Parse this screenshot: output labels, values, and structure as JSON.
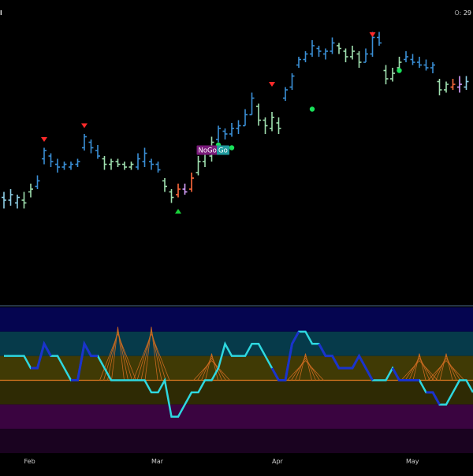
{
  "header": {
    "symbol_fragment": "l",
    "ohlc_label": "O:",
    "ohlc_value": "29"
  },
  "colors": {
    "strong_up": "#3a8fd6",
    "weak_up": "#8ecfe6",
    "neutral_up": "#9fe0b0",
    "neutral_down": "#d8a0ff",
    "strong_down": "#ff6a3d",
    "oscillator_line": "#2ed8e0",
    "oscillator_extreme": "#1a33cc",
    "zero_line": "#e07a20",
    "cone": "#c96a20",
    "go_badge": "#1f9a9e",
    "nogo_badge": "#7a1a7a",
    "up_triangle": "#19d23a",
    "down_triangle": "#ff2a2a",
    "dot": "#19e05a"
  },
  "chart_data": [
    {
      "type": "ohlc",
      "panel": "price",
      "ylim": [
        0,
        100
      ],
      "bars": [
        {
          "x": 0,
          "h": 39,
          "l": 33,
          "o": 37,
          "c": 36,
          "cls": "weak_up"
        },
        {
          "x": 1,
          "h": 40,
          "l": 34,
          "o": 36,
          "c": 38,
          "cls": "weak_up"
        },
        {
          "x": 2,
          "h": 38,
          "l": 33,
          "o": 35,
          "c": 37,
          "cls": "weak_up"
        },
        {
          "x": 3,
          "h": 39,
          "l": 33,
          "o": 36,
          "c": 35,
          "cls": "neutral_up"
        },
        {
          "x": 4,
          "h": 42,
          "l": 37,
          "o": 39,
          "c": 40,
          "cls": "neutral_up"
        },
        {
          "x": 5,
          "h": 45,
          "l": 40,
          "o": 41,
          "c": 43,
          "cls": "strong_up"
        },
        {
          "x": 6,
          "h": 55,
          "l": 49,
          "o": 51,
          "c": 54,
          "cls": "strong_up"
        },
        {
          "x": 7,
          "h": 53,
          "l": 48,
          "o": 52,
          "c": 50,
          "cls": "strong_up"
        },
        {
          "x": 8,
          "h": 51,
          "l": 46,
          "o": 49,
          "c": 48,
          "cls": "strong_up"
        },
        {
          "x": 9,
          "h": 50,
          "l": 47,
          "o": 48,
          "c": 49,
          "cls": "strong_up"
        },
        {
          "x": 10,
          "h": 50,
          "l": 47,
          "o": 48,
          "c": 49,
          "cls": "strong_up"
        },
        {
          "x": 11,
          "h": 51,
          "l": 48,
          "o": 49,
          "c": 50,
          "cls": "strong_up"
        },
        {
          "x": 12,
          "h": 60,
          "l": 54,
          "o": 55,
          "c": 59,
          "cls": "strong_up"
        },
        {
          "x": 13,
          "h": 58,
          "l": 53,
          "o": 57,
          "c": 55,
          "cls": "strong_up"
        },
        {
          "x": 14,
          "h": 56,
          "l": 51,
          "o": 54,
          "c": 52,
          "cls": "strong_up"
        },
        {
          "x": 15,
          "h": 52,
          "l": 47,
          "o": 51,
          "c": 49,
          "cls": "neutral_up"
        },
        {
          "x": 16,
          "h": 51,
          "l": 47,
          "o": 49,
          "c": 50,
          "cls": "neutral_up"
        },
        {
          "x": 17,
          "h": 51,
          "l": 48,
          "o": 50,
          "c": 49,
          "cls": "neutral_up"
        },
        {
          "x": 18,
          "h": 50,
          "l": 47,
          "o": 49,
          "c": 48,
          "cls": "neutral_up"
        },
        {
          "x": 19,
          "h": 50,
          "l": 47,
          "o": 48,
          "c": 49,
          "cls": "neutral_up"
        },
        {
          "x": 20,
          "h": 53,
          "l": 47,
          "o": 48,
          "c": 51,
          "cls": "strong_up"
        },
        {
          "x": 21,
          "h": 55,
          "l": 48,
          "o": 50,
          "c": 53,
          "cls": "strong_up"
        },
        {
          "x": 22,
          "h": 51,
          "l": 47,
          "o": 50,
          "c": 49,
          "cls": "strong_up"
        },
        {
          "x": 23,
          "h": 50,
          "l": 46,
          "o": 49,
          "c": 47,
          "cls": "strong_up"
        },
        {
          "x": 24,
          "h": 44,
          "l": 39,
          "o": 43,
          "c": 41,
          "cls": "neutral_up"
        },
        {
          "x": 25,
          "h": 40,
          "l": 35,
          "o": 39,
          "c": 37,
          "cls": "neutral_up"
        },
        {
          "x": 26,
          "h": 42,
          "l": 37,
          "o": 38,
          "c": 40,
          "cls": "strong_down"
        },
        {
          "x": 27,
          "h": 42,
          "l": 38,
          "o": 40,
          "c": 39,
          "cls": "neutral_down"
        },
        {
          "x": 28,
          "h": 46,
          "l": 39,
          "o": 40,
          "c": 44,
          "cls": "strong_down"
        },
        {
          "x": 29,
          "h": 52,
          "l": 45,
          "o": 46,
          "c": 50,
          "cls": "neutral_up"
        },
        {
          "x": 30,
          "h": 55,
          "l": 48,
          "o": 50,
          "c": 53,
          "cls": "neutral_up"
        },
        {
          "x": 31,
          "h": 59,
          "l": 50,
          "o": 52,
          "c": 57,
          "cls": "neutral_up"
        },
        {
          "x": 32,
          "h": 63,
          "l": 57,
          "o": 58,
          "c": 62,
          "cls": "strong_up"
        },
        {
          "x": 33,
          "h": 62,
          "l": 58,
          "o": 61,
          "c": 60,
          "cls": "strong_up"
        },
        {
          "x": 34,
          "h": 64,
          "l": 59,
          "o": 60,
          "c": 62,
          "cls": "strong_up"
        },
        {
          "x": 35,
          "h": 65,
          "l": 60,
          "o": 62,
          "c": 63,
          "cls": "strong_up"
        },
        {
          "x": 36,
          "h": 69,
          "l": 63,
          "o": 63,
          "c": 67,
          "cls": "strong_up"
        },
        {
          "x": 37,
          "h": 75,
          "l": 67,
          "o": 67,
          "c": 73,
          "cls": "strong_up"
        },
        {
          "x": 38,
          "h": 71,
          "l": 63,
          "o": 70,
          "c": 65,
          "cls": "neutral_up"
        },
        {
          "x": 39,
          "h": 66,
          "l": 60,
          "o": 65,
          "c": 63,
          "cls": "neutral_up"
        },
        {
          "x": 40,
          "h": 68,
          "l": 61,
          "o": 62,
          "c": 66,
          "cls": "neutral_up"
        },
        {
          "x": 41,
          "h": 66,
          "l": 60,
          "o": 64,
          "c": 62,
          "cls": "neutral_up"
        },
        {
          "x": 42,
          "h": 77,
          "l": 72,
          "o": 73,
          "c": 76,
          "cls": "strong_up"
        },
        {
          "x": 43,
          "h": 82,
          "l": 76,
          "o": 77,
          "c": 81,
          "cls": "strong_up"
        },
        {
          "x": 44,
          "h": 88,
          "l": 84,
          "o": 85,
          "c": 87,
          "cls": "strong_up"
        },
        {
          "x": 45,
          "h": 90,
          "l": 86,
          "o": 87,
          "c": 89,
          "cls": "strong_up"
        },
        {
          "x": 46,
          "h": 94,
          "l": 88,
          "o": 89,
          "c": 92,
          "cls": "strong_up"
        },
        {
          "x": 47,
          "h": 92,
          "l": 88,
          "o": 91,
          "c": 90,
          "cls": "strong_up"
        },
        {
          "x": 48,
          "h": 91,
          "l": 87,
          "o": 89,
          "c": 90,
          "cls": "strong_up"
        },
        {
          "x": 49,
          "h": 95,
          "l": 89,
          "o": 90,
          "c": 93,
          "cls": "strong_up"
        },
        {
          "x": 50,
          "h": 93,
          "l": 89,
          "o": 92,
          "c": 91,
          "cls": "neutral_up"
        },
        {
          "x": 51,
          "h": 91,
          "l": 86,
          "o": 90,
          "c": 88,
          "cls": "neutral_up"
        },
        {
          "x": 52,
          "h": 92,
          "l": 87,
          "o": 88,
          "c": 90,
          "cls": "neutral_up"
        },
        {
          "x": 53,
          "h": 90,
          "l": 84,
          "o": 89,
          "c": 86,
          "cls": "neutral_up"
        },
        {
          "x": 54,
          "h": 91,
          "l": 86,
          "o": 86,
          "c": 89,
          "cls": "strong_up"
        },
        {
          "x": 55,
          "h": 97,
          "l": 88,
          "o": 89,
          "c": 95,
          "cls": "strong_up"
        },
        {
          "x": 56,
          "h": 97,
          "l": 92,
          "o": 95,
          "c": 93,
          "cls": "strong_up"
        },
        {
          "x": 57,
          "h": 85,
          "l": 78,
          "o": 83,
          "c": 80,
          "cls": "neutral_up"
        },
        {
          "x": 58,
          "h": 84,
          "l": 79,
          "o": 80,
          "c": 82,
          "cls": "neutral_up"
        },
        {
          "x": 59,
          "h": 88,
          "l": 83,
          "o": 84,
          "c": 86,
          "cls": "neutral_up"
        },
        {
          "x": 60,
          "h": 90,
          "l": 86,
          "o": 87,
          "c": 88,
          "cls": "strong_up"
        },
        {
          "x": 61,
          "h": 89,
          "l": 85,
          "o": 87,
          "c": 86,
          "cls": "strong_up"
        },
        {
          "x": 62,
          "h": 88,
          "l": 84,
          "o": 86,
          "c": 85,
          "cls": "strong_up"
        },
        {
          "x": 63,
          "h": 87,
          "l": 83,
          "o": 85,
          "c": 84,
          "cls": "strong_up"
        },
        {
          "x": 64,
          "h": 86,
          "l": 82,
          "o": 84,
          "c": 85,
          "cls": "strong_up"
        },
        {
          "x": 65,
          "h": 80,
          "l": 74,
          "o": 79,
          "c": 76,
          "cls": "neutral_up"
        },
        {
          "x": 66,
          "h": 79,
          "l": 75,
          "o": 76,
          "c": 78,
          "cls": "neutral_up"
        },
        {
          "x": 67,
          "h": 80,
          "l": 76,
          "o": 77,
          "c": 78,
          "cls": "strong_down"
        },
        {
          "x": 68,
          "h": 81,
          "l": 75,
          "o": 77,
          "c": 78,
          "cls": "neutral_down"
        },
        {
          "x": 69,
          "h": 81,
          "l": 76,
          "o": 77,
          "c": 79,
          "cls": "weak_up"
        }
      ],
      "markers": [
        {
          "x": 6,
          "type": "down_triangle",
          "value": 58
        },
        {
          "x": 12,
          "type": "down_triangle",
          "value": 63
        },
        {
          "x": 26,
          "type": "up_triangle",
          "value": 32
        },
        {
          "x": 32,
          "type": "dot",
          "value": 56
        },
        {
          "x": 34,
          "type": "dot",
          "value": 55
        },
        {
          "x": 40,
          "type": "down_triangle",
          "value": 78
        },
        {
          "x": 46,
          "type": "dot",
          "value": 69
        },
        {
          "x": 55,
          "type": "down_triangle",
          "value": 96
        },
        {
          "x": 59,
          "type": "dot",
          "value": 83
        }
      ],
      "badges": [
        {
          "x": 29,
          "text": "NoGo",
          "kind": "nogo",
          "value": 53
        },
        {
          "x": 32,
          "text": "Go",
          "kind": "go",
          "value": 53
        },
        {
          "x": 71,
          "text": "NoGo",
          "kind": "nogo",
          "value": 84
        }
      ]
    },
    {
      "type": "line",
      "panel": "oscillator",
      "ylim": [
        -6,
        6
      ],
      "zero_line": 0,
      "x_labels": [
        "Feb",
        "Mar",
        "Apr",
        "May"
      ],
      "x_label_positions": [
        3,
        22,
        40,
        60
      ],
      "series": [
        {
          "values": [
            2,
            2,
            2,
            2,
            1,
            1,
            3,
            2,
            2,
            1,
            0,
            0,
            3,
            2,
            2,
            1,
            0,
            0,
            0,
            0,
            0,
            0,
            -1,
            -1,
            0,
            -3,
            -3,
            -2,
            -1,
            -1,
            0,
            0,
            1,
            3,
            2,
            2,
            2,
            3,
            3,
            2,
            1,
            0,
            0,
            3,
            4,
            4,
            3,
            3,
            2,
            2,
            1,
            1,
            1,
            2,
            1,
            0,
            0,
            0,
            1,
            0,
            0,
            0,
            0,
            -1,
            -1,
            -2,
            -2,
            -1,
            0,
            0,
            -1
          ],
          "extreme_segments": [
            [
              4,
              7
            ],
            [
              10,
              14
            ],
            [
              40,
              44
            ],
            [
              47,
              55
            ],
            [
              58,
              62
            ],
            [
              63,
              65
            ]
          ]
        }
      ],
      "cones": [
        {
          "x": 17,
          "height": 2
        },
        {
          "x": 22,
          "height": 2
        },
        {
          "x": 31,
          "height": 1
        },
        {
          "x": 45,
          "height": 1
        },
        {
          "x": 62,
          "height": 1
        },
        {
          "x": 66,
          "height": 1
        }
      ]
    }
  ]
}
